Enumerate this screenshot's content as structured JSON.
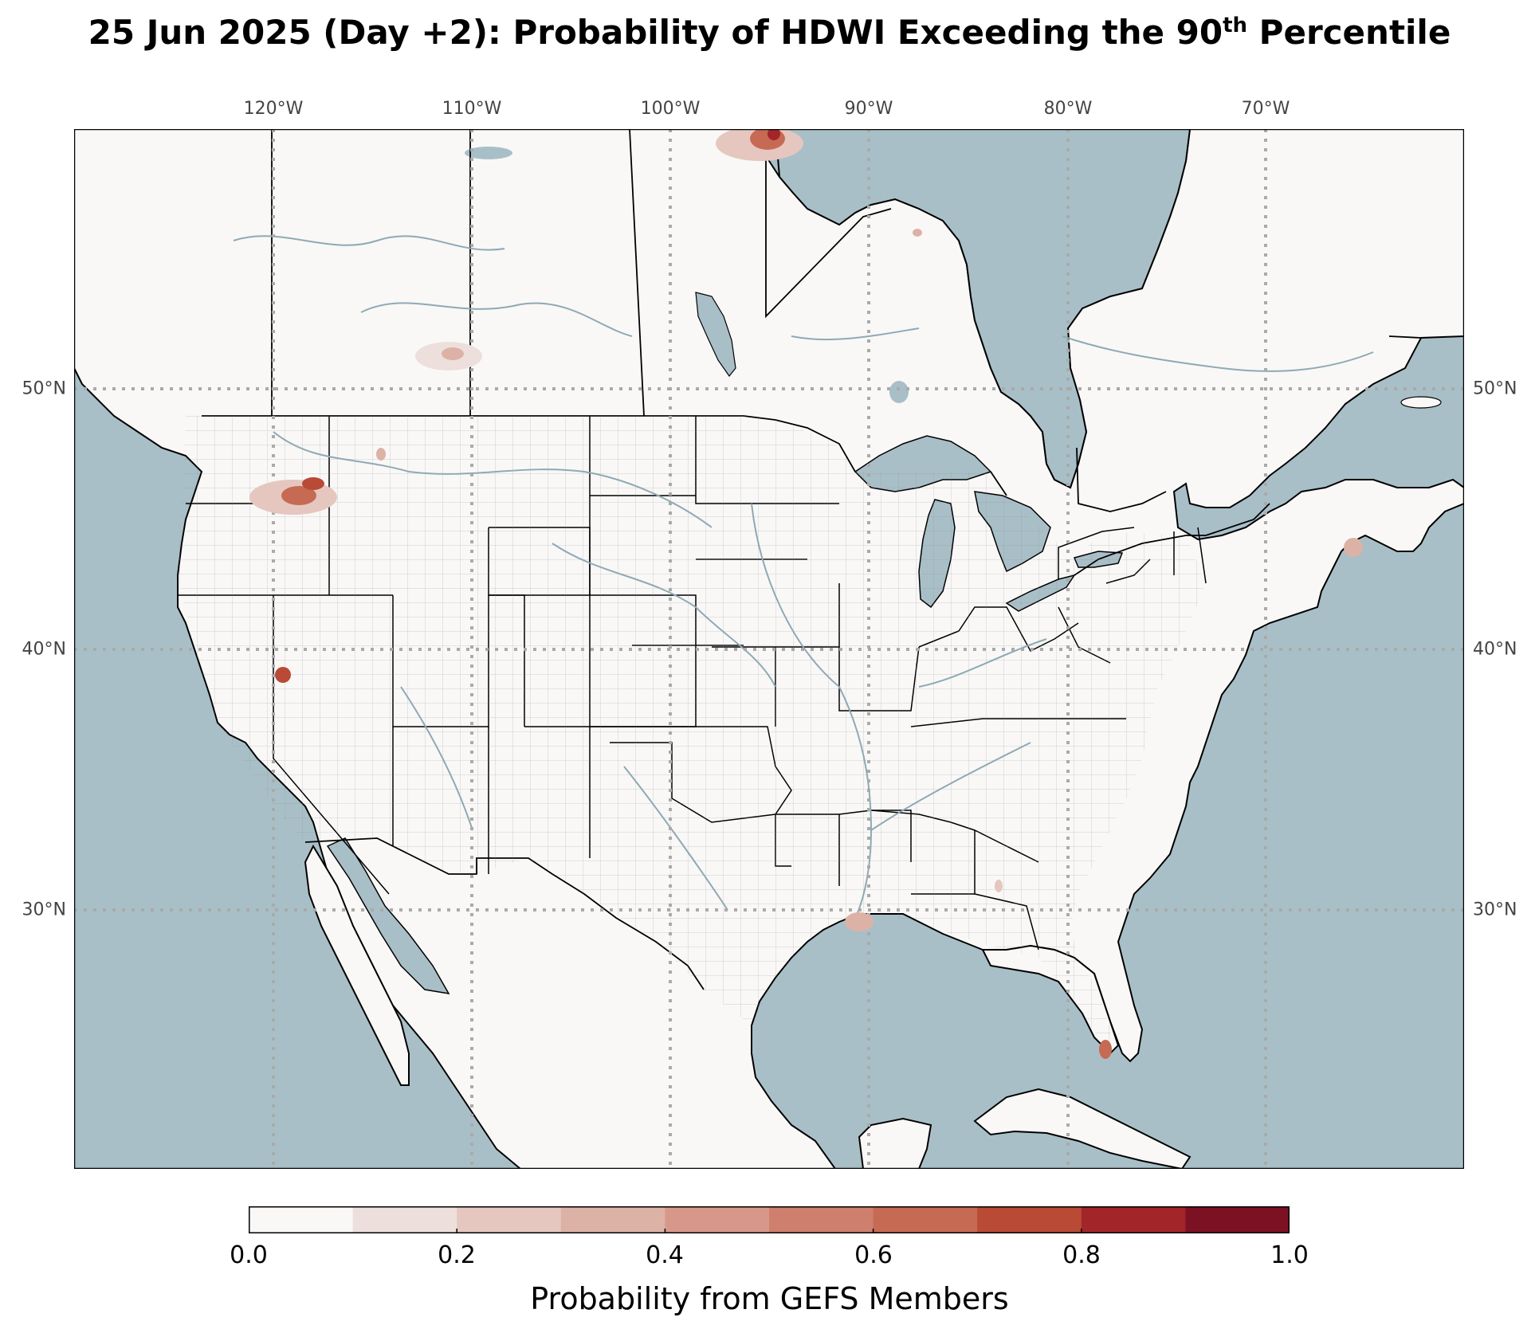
{
  "title": {
    "main": "25 Jun 2025 (Day +2): Probability of HDWI Exceeding the 90",
    "sup": "th",
    "end": " Percentile"
  },
  "map": {
    "ocean_color": "#a9bfc7",
    "land_color": "#f9f8f7",
    "grid_color": "#aaaaaa",
    "lon_ticks": [
      "120°W",
      "110°W",
      "100°W",
      "90°W",
      "80°W",
      "70°W"
    ],
    "lat_ticks": [
      "50°N",
      "40°N",
      "30°N"
    ]
  },
  "colorbar": {
    "title": "Probability from GEFS Members",
    "tick_labels": [
      "0.0",
      "0.2",
      "0.4",
      "0.6",
      "0.8",
      "1.0"
    ],
    "colors": [
      "#f9f8f7",
      "#eddfdc",
      "#e5c7bf",
      "#ddb2a6",
      "#d7988a",
      "#cf7f6d",
      "#c66a53",
      "#b84a36",
      "#a2252a",
      "#7c1124"
    ]
  }
}
